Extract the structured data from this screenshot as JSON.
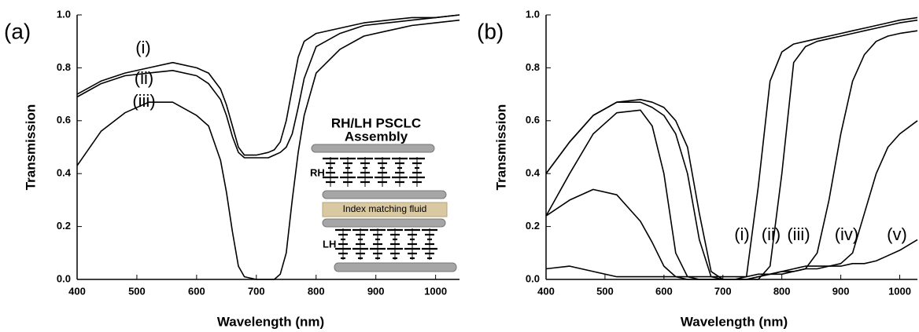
{
  "chart_data": [
    {
      "type": "line",
      "panel_label": "(a)",
      "xlabel": "Wavelength (nm)",
      "ylabel": "Transmission",
      "x": [
        400,
        440,
        480,
        520,
        560,
        600,
        620,
        640,
        650,
        660,
        670,
        680,
        700,
        720,
        730,
        740,
        750,
        760,
        770,
        780,
        800,
        840,
        880,
        920,
        960,
        1000,
        1040
      ],
      "series": [
        {
          "name": "(i)",
          "color": "#000000",
          "values": [
            0.7,
            0.75,
            0.78,
            0.8,
            0.82,
            0.8,
            0.78,
            0.72,
            0.66,
            0.58,
            0.5,
            0.47,
            0.47,
            0.48,
            0.49,
            0.52,
            0.6,
            0.72,
            0.84,
            0.9,
            0.93,
            0.95,
            0.97,
            0.98,
            0.99,
            0.99,
            1.0
          ]
        },
        {
          "name": "(ii)",
          "color": "#000000",
          "values": [
            0.69,
            0.74,
            0.77,
            0.78,
            0.79,
            0.77,
            0.74,
            0.68,
            0.62,
            0.54,
            0.48,
            0.46,
            0.46,
            0.46,
            0.47,
            0.48,
            0.5,
            0.55,
            0.65,
            0.76,
            0.88,
            0.93,
            0.96,
            0.97,
            0.98,
            0.99,
            1.0
          ]
        },
        {
          "name": "(iii)",
          "color": "#000000",
          "values": [
            0.43,
            0.56,
            0.63,
            0.67,
            0.67,
            0.62,
            0.58,
            0.45,
            0.33,
            0.18,
            0.05,
            0.01,
            0,
            0,
            0,
            0.02,
            0.1,
            0.3,
            0.48,
            0.62,
            0.78,
            0.87,
            0.92,
            0.94,
            0.96,
            0.97,
            0.98
          ]
        }
      ],
      "xlim": [
        400,
        1040
      ],
      "ylim": [
        0,
        1
      ],
      "xticks": [
        400,
        500,
        600,
        700,
        800,
        900,
        1000
      ],
      "yticks": [
        {
          "value": 0,
          "label": "0.0"
        },
        0.2,
        0.4,
        0.6,
        0.8,
        {
          "value": 1,
          "label": "1.0"
        }
      ],
      "inset": {
        "title": [
          "RH/LH PSCLC",
          "Assembly"
        ],
        "top_label": "RH",
        "middle_label": "Index matching fluid",
        "bottom_label": "LH"
      }
    },
    {
      "type": "line",
      "panel_label": "(b)",
      "xlabel": "Wavelength (nm)",
      "ylabel": "Transmission",
      "x": [
        400,
        440,
        480,
        520,
        560,
        580,
        600,
        620,
        640,
        660,
        680,
        700,
        720,
        740,
        760,
        780,
        800,
        820,
        840,
        860,
        880,
        900,
        920,
        940,
        960,
        980,
        1000,
        1030
      ],
      "series": [
        {
          "name": "(i)",
          "color": "#000000",
          "values": [
            0.4,
            0.52,
            0.62,
            0.67,
            0.68,
            0.67,
            0.65,
            0.6,
            0.5,
            0.25,
            0.03,
            0,
            0,
            0.01,
            0.35,
            0.75,
            0.86,
            0.89,
            0.9,
            0.91,
            0.92,
            0.93,
            0.94,
            0.95,
            0.96,
            0.97,
            0.98,
            0.99
          ]
        },
        {
          "name": "(ii)",
          "color": "#000000",
          "values": [
            0.4,
            0.52,
            0.62,
            0.67,
            0.67,
            0.65,
            0.62,
            0.55,
            0.4,
            0.15,
            0.01,
            0,
            0,
            0,
            0,
            0.05,
            0.4,
            0.82,
            0.88,
            0.9,
            0.91,
            0.92,
            0.93,
            0.94,
            0.95,
            0.96,
            0.97,
            0.98
          ]
        },
        {
          "name": "(iii)",
          "color": "#000000",
          "values": [
            0.24,
            0.4,
            0.55,
            0.63,
            0.64,
            0.58,
            0.4,
            0.1,
            0.01,
            0,
            0,
            0,
            0,
            0,
            0.01,
            0.02,
            0.02,
            0.03,
            0.04,
            0.1,
            0.3,
            0.55,
            0.75,
            0.85,
            0.9,
            0.92,
            0.93,
            0.94
          ]
        },
        {
          "name": "(iv)",
          "color": "#000000",
          "values": [
            0.24,
            0.3,
            0.34,
            0.32,
            0.22,
            0.14,
            0.05,
            0.01,
            0,
            0,
            0,
            0,
            0,
            0,
            0.01,
            0.02,
            0.03,
            0.04,
            0.05,
            0.05,
            0.05,
            0.06,
            0.1,
            0.25,
            0.4,
            0.5,
            0.55,
            0.6
          ]
        },
        {
          "name": "(v)",
          "color": "#000000",
          "values": [
            0.04,
            0.05,
            0.03,
            0.01,
            0.01,
            0.01,
            0.01,
            0.01,
            0.01,
            0.01,
            0.01,
            0.01,
            0.01,
            0.01,
            0.02,
            0.02,
            0.03,
            0.03,
            0.04,
            0.04,
            0.05,
            0.05,
            0.06,
            0.06,
            0.07,
            0.09,
            0.11,
            0.15
          ]
        }
      ],
      "xlim": [
        400,
        1030
      ],
      "ylim": [
        0,
        1
      ],
      "xticks": [
        400,
        500,
        600,
        700,
        800,
        900,
        1000
      ],
      "yticks": [
        {
          "value": 0,
          "label": "0.0"
        },
        0.2,
        0.4,
        0.6,
        0.8,
        {
          "value": 1,
          "label": "1.0"
        }
      ]
    }
  ]
}
